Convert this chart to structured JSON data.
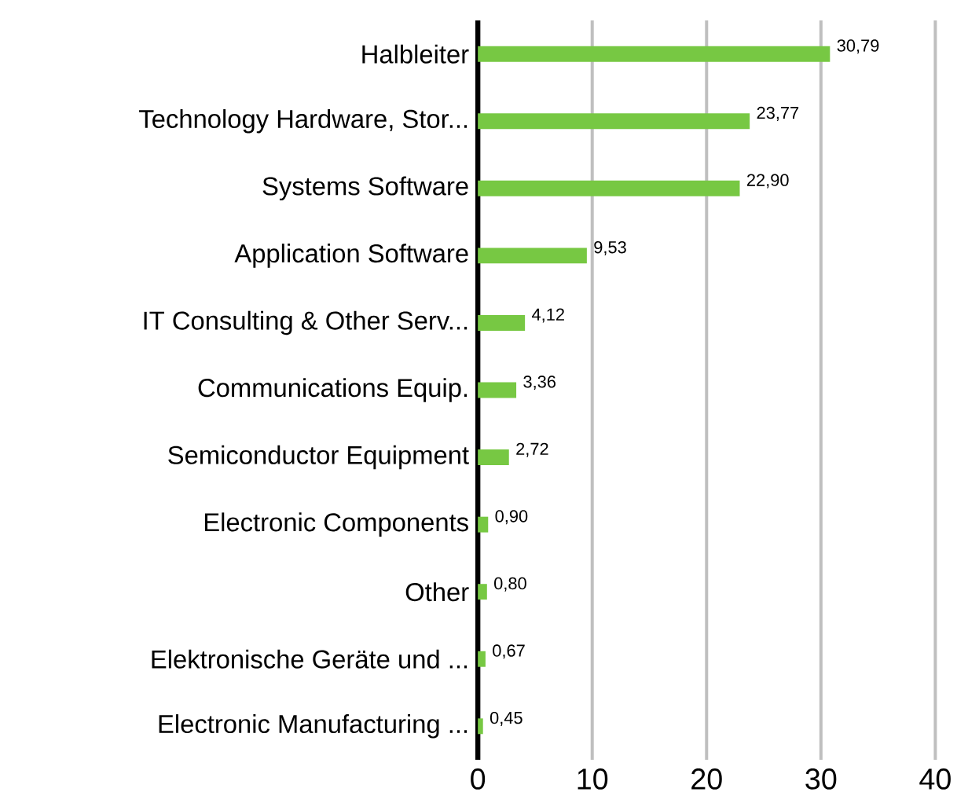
{
  "chart_data": {
    "type": "bar",
    "orientation": "horizontal",
    "categories": [
      "Halbleiter",
      "Technology Hardware, Stor...",
      "Systems Software",
      "Application Software",
      "IT Consulting & Other Serv...",
      "Communications Equip.",
      "Semiconductor Equipment",
      "Electronic Components",
      "Other",
      "Elektronische Geräte und ...",
      "Electronic Manufacturing ..."
    ],
    "values": [
      30.79,
      23.77,
      22.9,
      9.53,
      4.12,
      3.36,
      2.72,
      0.9,
      0.8,
      0.67,
      0.45
    ],
    "value_labels": [
      "30,79",
      "23,77",
      "22,90",
      "9,53",
      "4,12",
      "3,36",
      "2,72",
      "0,90",
      "0,80",
      "0,67",
      "0,45"
    ],
    "color": "#77c843",
    "xlim": [
      0,
      40
    ],
    "xticks": [
      0,
      10,
      20,
      30,
      40
    ],
    "grid": "x"
  }
}
